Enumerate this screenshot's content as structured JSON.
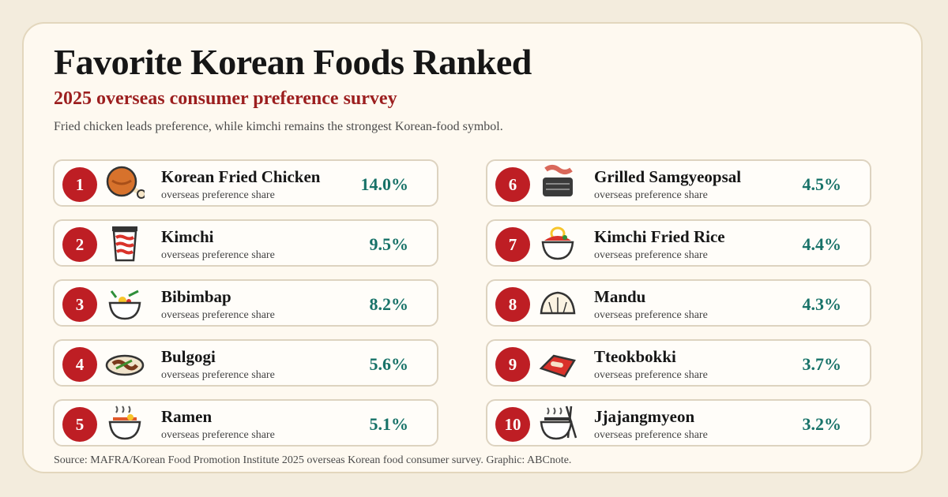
{
  "title": "Favorite Korean Foods Ranked",
  "subtitle": "2025 overseas consumer preference survey",
  "note": "Fried chicken leads preference, while kimchi remains the strongest Korean-food symbol.",
  "source": "Source: MAFRA/Korean Food Promotion Institute 2025 overseas Korean food consumer survey. Graphic: ABCnote.",
  "colors": {
    "badge": "#be1e24",
    "value": "#177268",
    "subtitle": "#9c1f1f",
    "card": "#fef9f0"
  },
  "chart_data": {
    "type": "table",
    "title": "Favorite Korean Foods Ranked",
    "subtitle": "2025 overseas consumer preference survey",
    "value_unit": "%",
    "row_sublabel": "overseas preference share",
    "rows": [
      {
        "rank": "1",
        "name": "Korean Fried Chicken",
        "value": 14.0,
        "value_label": "14.0%",
        "icon": "fried-chicken-icon"
      },
      {
        "rank": "2",
        "name": "Kimchi",
        "value": 9.5,
        "value_label": "9.5%",
        "icon": "kimchi-jar-icon"
      },
      {
        "rank": "3",
        "name": "Bibimbap",
        "value": 8.2,
        "value_label": "8.2%",
        "icon": "bibimbap-bowl-icon"
      },
      {
        "rank": "4",
        "name": "Bulgogi",
        "value": 5.6,
        "value_label": "5.6%",
        "icon": "bulgogi-plate-icon"
      },
      {
        "rank": "5",
        "name": "Ramen",
        "value": 5.1,
        "value_label": "5.1%",
        "icon": "ramen-bowl-icon"
      },
      {
        "rank": "6",
        "name": "Grilled Samgyeopsal",
        "value": 4.5,
        "value_label": "4.5%",
        "icon": "samgyeopsal-grill-icon"
      },
      {
        "rank": "7",
        "name": "Kimchi Fried Rice",
        "value": 4.4,
        "value_label": "4.4%",
        "icon": "fried-rice-bowl-icon"
      },
      {
        "rank": "8",
        "name": "Mandu",
        "value": 4.3,
        "value_label": "4.3%",
        "icon": "dumpling-icon"
      },
      {
        "rank": "9",
        "name": "Tteokbokki",
        "value": 3.7,
        "value_label": "3.7%",
        "icon": "tteokbokki-icon"
      },
      {
        "rank": "10",
        "name": "Jjajangmyeon",
        "value": 3.2,
        "value_label": "3.2%",
        "icon": "noodle-bowl-chopsticks-icon"
      }
    ]
  }
}
